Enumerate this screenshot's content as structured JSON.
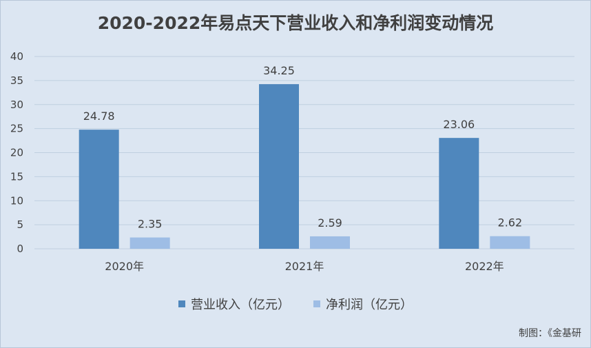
{
  "title": "2020-2022年易点天下营业收入和净利润变动情况",
  "credit": "制图：《金基研",
  "colors": {
    "revenue": "#4f87bd",
    "profit": "#9ebde5",
    "grid": "#bfcfe0",
    "text": "#404040"
  },
  "chart_data": {
    "type": "bar",
    "title": "2020-2022年易点天下营业收入和净利润变动情况",
    "categories": [
      "2020年",
      "2021年",
      "2022年"
    ],
    "series": [
      {
        "name": "营业收入（亿元）",
        "values": [
          24.78,
          34.25,
          23.06
        ]
      },
      {
        "name": "净利润（亿元）",
        "values": [
          2.35,
          2.59,
          2.62
        ]
      }
    ],
    "xlabel": "",
    "ylabel": "",
    "ylim": [
      0,
      40
    ],
    "yticks": [
      0,
      5,
      10,
      15,
      20,
      25,
      30,
      35,
      40
    ],
    "grid": true,
    "legend_position": "bottom",
    "data_labels": true
  }
}
